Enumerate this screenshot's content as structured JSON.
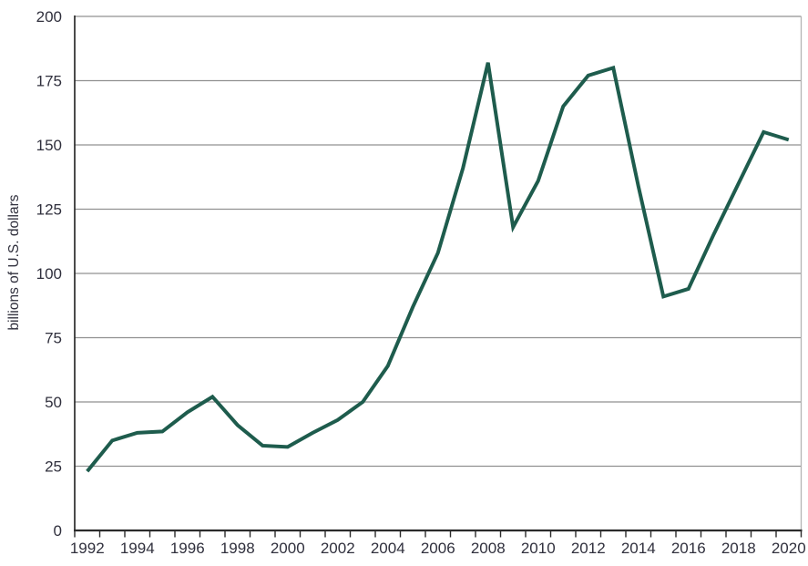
{
  "chart_data": {
    "type": "line",
    "title": "",
    "xlabel": "",
    "ylabel": "billions of U.S. dollars",
    "x": [
      1992,
      1993,
      1994,
      1995,
      1996,
      1997,
      1998,
      1999,
      2000,
      2001,
      2002,
      2003,
      2004,
      2005,
      2006,
      2007,
      2008,
      2009,
      2010,
      2011,
      2012,
      2013,
      2014,
      2015,
      2016,
      2017,
      2018,
      2019,
      2020
    ],
    "values": [
      23,
      35,
      38,
      38.5,
      46,
      52,
      41,
      33,
      32.5,
      38,
      43,
      50,
      64,
      87,
      108,
      141,
      182,
      118,
      136,
      165,
      177,
      180,
      134,
      91,
      94,
      115,
      135,
      155,
      152
    ],
    "ylim": [
      0,
      200
    ],
    "ytick_interval": 25,
    "ytick_labels": [
      "0",
      "25",
      "50",
      "75",
      "100",
      "125",
      "150",
      "175",
      "200"
    ],
    "xtick_labels": [
      "1992",
      "1994",
      "1996",
      "1998",
      "2000",
      "2002",
      "2004",
      "2006",
      "2008",
      "2010",
      "2012",
      "2014",
      "2016",
      "2018",
      "2020"
    ],
    "x_axis_range": [
      1991.5,
      2020.5
    ],
    "grid": "horizontal",
    "legend": "none",
    "colors": {
      "line": "#1e5c4d",
      "grid": "#909090",
      "axis": "#2b2b2b",
      "right_border": "#b4b4b4",
      "text": "#30303d",
      "background": "#ffffff"
    }
  }
}
